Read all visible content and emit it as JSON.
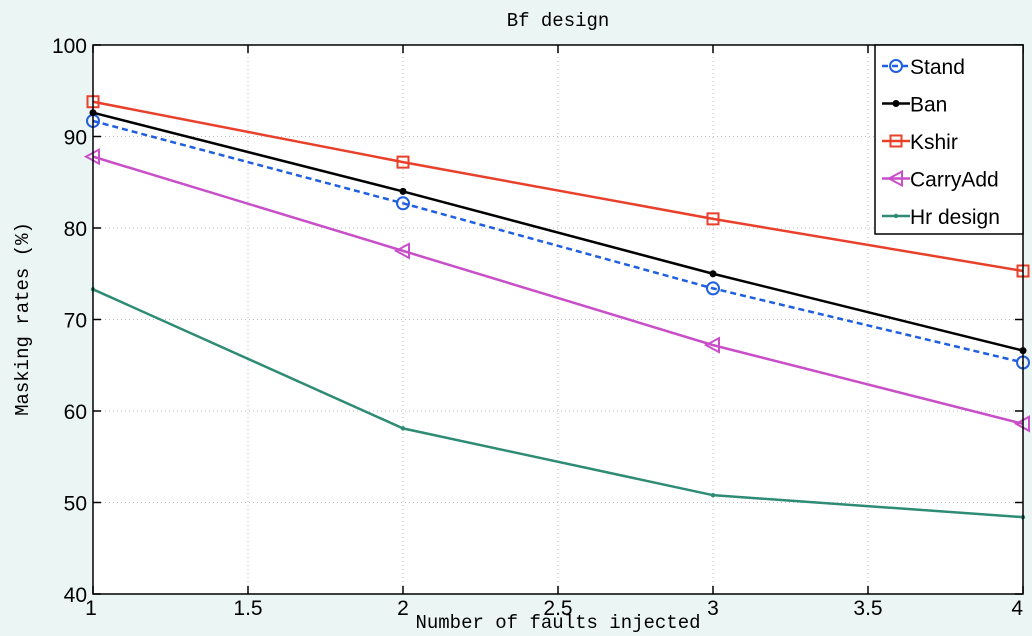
{
  "chart_data": {
    "type": "line",
    "title": "Bf design",
    "xlabel": "Number of faults injected",
    "ylabel": "Masking rates (%)",
    "xlim": [
      1,
      4
    ],
    "ylim": [
      40,
      100
    ],
    "xticks": [
      "1",
      "1.5",
      "2",
      "2.5",
      "3",
      "3.5",
      "4"
    ],
    "yticks": [
      "40",
      "50",
      "60",
      "70",
      "80",
      "90",
      "100"
    ],
    "grid": true,
    "legend_position": "top-right",
    "x": [
      1,
      2,
      3,
      4
    ],
    "series": [
      {
        "name": "Stand",
        "values": [
          91.7,
          82.7,
          73.4,
          65.3
        ],
        "color": "#1f5fe0",
        "marker": "circle",
        "dash": true
      },
      {
        "name": "Ban",
        "values": [
          92.6,
          84.0,
          75.0,
          66.6
        ],
        "color": "#000000",
        "marker": "dot",
        "dash": false
      },
      {
        "name": "Kshir",
        "values": [
          93.8,
          87.2,
          81.0,
          75.3
        ],
        "color": "#e8402a",
        "marker": "square",
        "dash": false
      },
      {
        "name": "CarryAdd",
        "values": [
          87.8,
          77.5,
          67.2,
          58.6
        ],
        "color": "#c94fc9",
        "marker": "triangle-left",
        "dash": false
      },
      {
        "name": "Hr design",
        "values": [
          73.3,
          58.1,
          50.8,
          48.4
        ],
        "color": "#2e8b74",
        "marker": "small-dot",
        "dash": false
      }
    ]
  }
}
